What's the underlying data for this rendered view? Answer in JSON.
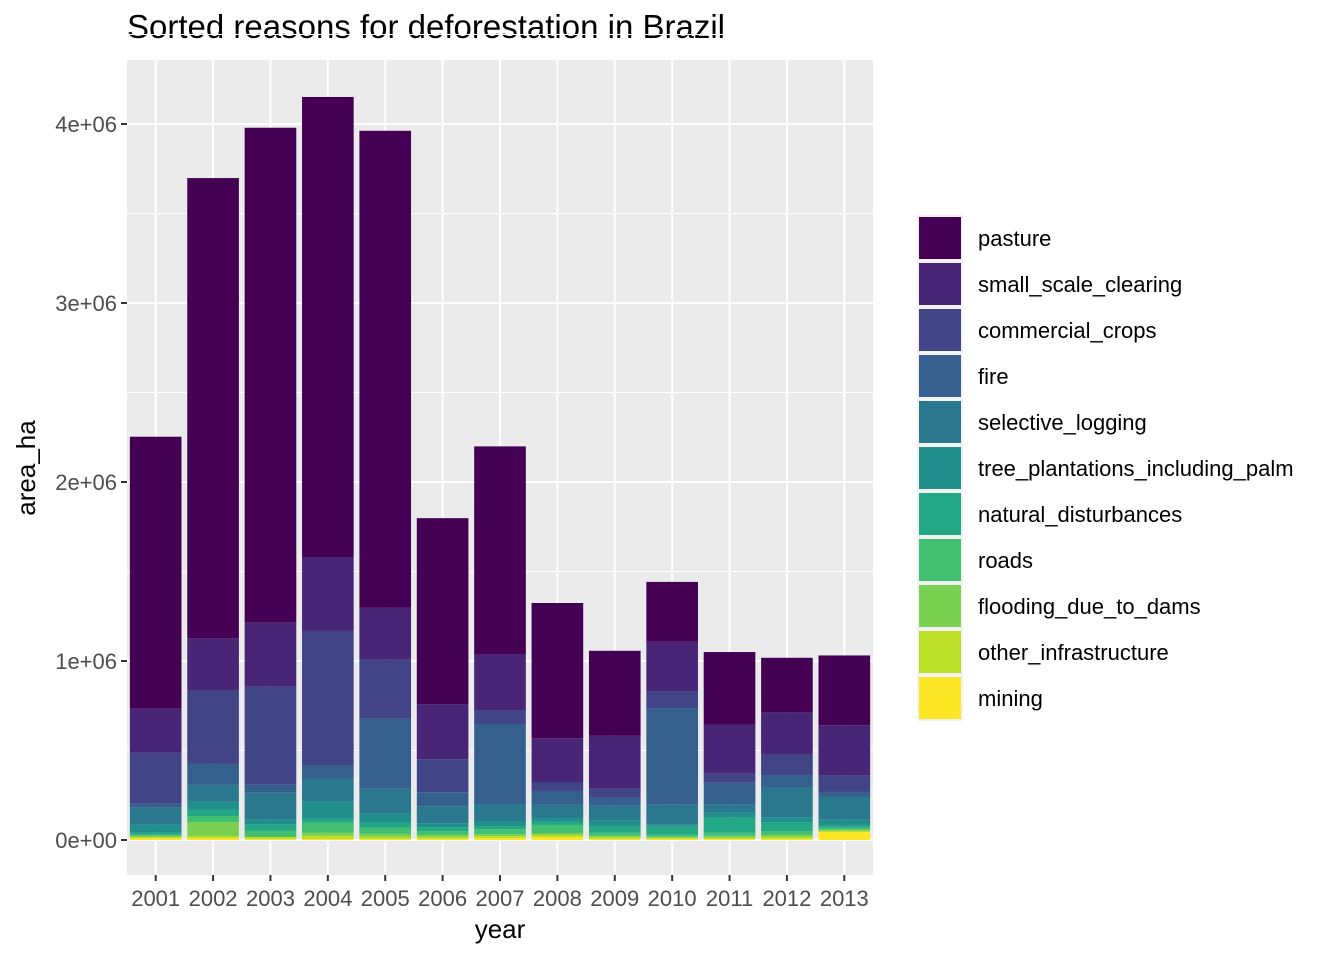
{
  "chart_data": {
    "type": "bar",
    "stacked": true,
    "title": "Sorted reasons for deforestation in Brazil",
    "xlabel": "year",
    "ylabel": "area_ha",
    "ylim": [
      0,
      4300000
    ],
    "yticks": [
      0,
      1000000,
      2000000,
      3000000,
      4000000
    ],
    "ytick_labels": [
      "0e+00",
      "1e+06",
      "2e+06",
      "3e+06",
      "4e+06"
    ],
    "grid": true,
    "legend_position": "right",
    "categories": [
      "2001",
      "2002",
      "2003",
      "2004",
      "2005",
      "2006",
      "2007",
      "2008",
      "2009",
      "2010",
      "2011",
      "2012",
      "2013"
    ],
    "series": [
      {
        "name": "pasture",
        "color": "#440154",
        "values": [
          1520000,
          2570000,
          2765000,
          2570000,
          2665000,
          1040000,
          1160000,
          755000,
          475000,
          335000,
          405000,
          305000,
          390000
        ]
      },
      {
        "name": "small_scale_clearing",
        "color": "#482576",
        "values": [
          246000,
          290000,
          358000,
          413000,
          290000,
          307000,
          313000,
          245000,
          295000,
          275000,
          275000,
          235000,
          280000
        ]
      },
      {
        "name": "commercial_crops",
        "color": "#414487",
        "values": [
          285000,
          413000,
          547000,
          749000,
          330000,
          184000,
          78000,
          50000,
          50000,
          95000,
          50000,
          115000,
          90000
        ]
      },
      {
        "name": "fire",
        "color": "#35608D",
        "values": [
          22000,
          117000,
          45000,
          78000,
          391000,
          78000,
          447000,
          78000,
          45000,
          540000,
          123000,
          67000,
          28000
        ]
      },
      {
        "name": "selective_logging",
        "color": "#2A788E",
        "values": [
          95000,
          95000,
          151000,
          128000,
          140000,
          95000,
          95000,
          73000,
          84000,
          112000,
          45000,
          168000,
          130000
        ]
      },
      {
        "name": "tree_plantations_including_palm",
        "color": "#21908C",
        "values": [
          45000,
          45000,
          28000,
          95000,
          50000,
          22000,
          28000,
          22000,
          34000,
          11000,
          28000,
          28000,
          34000
        ]
      },
      {
        "name": "natural_disturbances",
        "color": "#22A884",
        "values": [
          11000,
          34000,
          34000,
          22000,
          28000,
          22000,
          17000,
          17000,
          34000,
          45000,
          84000,
          50000,
          11000
        ]
      },
      {
        "name": "roads",
        "color": "#43BF71",
        "values": [
          6000,
          34000,
          34000,
          56000,
          34000,
          22000,
          28000,
          45000,
          17000,
          11000,
          17000,
          22000,
          11000
        ]
      },
      {
        "name": "flooding_due_to_dams",
        "color": "#7AD151",
        "values": [
          6000,
          78000,
          0,
          17000,
          17000,
          11000,
          11000,
          11000,
          6000,
          6000,
          11000,
          11000,
          6000
        ]
      },
      {
        "name": "other_infrastructure",
        "color": "#BBDF27",
        "values": [
          6000,
          11000,
          11000,
          17000,
          11000,
          11000,
          11000,
          11000,
          11000,
          6000,
          6000,
          11000,
          6000
        ]
      },
      {
        "name": "mining",
        "color": "#FDE725",
        "values": [
          11000,
          11000,
          6000,
          6000,
          6000,
          6000,
          11000,
          17000,
          6000,
          6000,
          6000,
          6000,
          45000
        ]
      }
    ]
  }
}
